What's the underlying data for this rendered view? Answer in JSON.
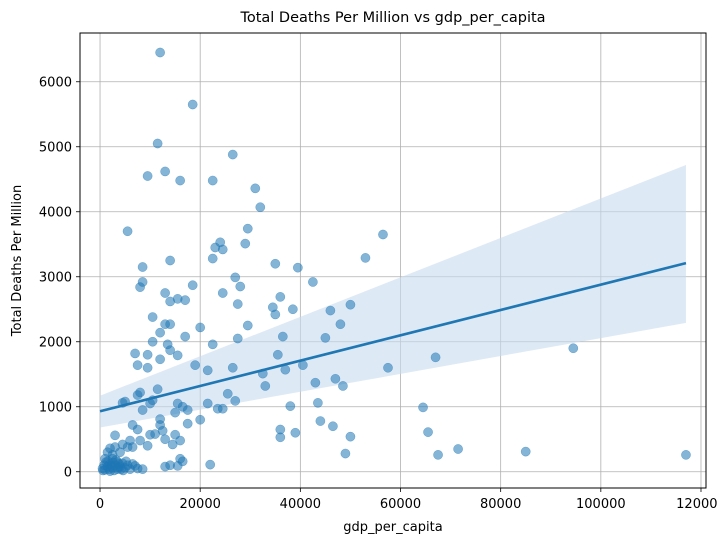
{
  "chart_data": {
    "type": "scatter",
    "title": "Total Deaths Per Million vs gdp_per_capita",
    "xlabel": "gdp_per_capita",
    "ylabel": "Total Deaths Per Million",
    "xlim": [
      -4000,
      121000
    ],
    "ylim": [
      -250,
      6750
    ],
    "xticks": [
      0,
      20000,
      40000,
      60000,
      80000,
      100000,
      120000
    ],
    "yticks": [
      0,
      1000,
      2000,
      3000,
      4000,
      5000,
      6000
    ],
    "grid": true,
    "colors": {
      "points": "#1f77b4",
      "line": "#1f77b4",
      "band": "#c6dbef",
      "grid": "#b0b0b0",
      "axis": "#000000"
    },
    "regression": {
      "x": [
        0,
        117000
      ],
      "y": [
        930,
        3210
      ],
      "ci_upper": [
        1170,
        4720
      ],
      "ci_lower": [
        680,
        2290
      ]
    },
    "points": [
      [
        12000,
        6450
      ],
      [
        18500,
        5650
      ],
      [
        11500,
        5050
      ],
      [
        26500,
        4880
      ],
      [
        9500,
        4550
      ],
      [
        13000,
        4620
      ],
      [
        16000,
        4480
      ],
      [
        22500,
        4480
      ],
      [
        31000,
        4360
      ],
      [
        32000,
        4070
      ],
      [
        5500,
        3700
      ],
      [
        29500,
        3740
      ],
      [
        56500,
        3650
      ],
      [
        23000,
        3450
      ],
      [
        24000,
        3530
      ],
      [
        24500,
        3420
      ],
      [
        14000,
        3250
      ],
      [
        22500,
        3280
      ],
      [
        29000,
        3510
      ],
      [
        35000,
        3200
      ],
      [
        39500,
        3140
      ],
      [
        53000,
        3290
      ],
      [
        8500,
        3150
      ],
      [
        8500,
        2920
      ],
      [
        13000,
        2750
      ],
      [
        15500,
        2660
      ],
      [
        18500,
        2870
      ],
      [
        27000,
        2990
      ],
      [
        8000,
        2840
      ],
      [
        14000,
        2620
      ],
      [
        17000,
        2640
      ],
      [
        24500,
        2750
      ],
      [
        27500,
        2580
      ],
      [
        28000,
        2850
      ],
      [
        34500,
        2530
      ],
      [
        36000,
        2690
      ],
      [
        38500,
        2500
      ],
      [
        42500,
        2920
      ],
      [
        46000,
        2480
      ],
      [
        48000,
        2270
      ],
      [
        50000,
        2570
      ],
      [
        10500,
        2380
      ],
      [
        13000,
        2270
      ],
      [
        14000,
        2270
      ],
      [
        20000,
        2220
      ],
      [
        29500,
        2250
      ],
      [
        35000,
        2420
      ],
      [
        12000,
        2140
      ],
      [
        10500,
        2000
      ],
      [
        13500,
        1960
      ],
      [
        17000,
        2080
      ],
      [
        22500,
        1960
      ],
      [
        27500,
        2050
      ],
      [
        36500,
        2080
      ],
      [
        45000,
        2060
      ],
      [
        7000,
        1820
      ],
      [
        9500,
        1800
      ],
      [
        12000,
        1730
      ],
      [
        14000,
        1870
      ],
      [
        15500,
        1790
      ],
      [
        19000,
        1640
      ],
      [
        21500,
        1560
      ],
      [
        26500,
        1600
      ],
      [
        32500,
        1510
      ],
      [
        35500,
        1800
      ],
      [
        37000,
        1570
      ],
      [
        40500,
        1640
      ],
      [
        7500,
        1640
      ],
      [
        8000,
        1220
      ],
      [
        9500,
        1600
      ],
      [
        11500,
        1270
      ],
      [
        10000,
        1050
      ],
      [
        12000,
        810
      ],
      [
        12500,
        630
      ],
      [
        15000,
        910
      ],
      [
        15500,
        1050
      ],
      [
        16500,
        1000
      ],
      [
        17500,
        950
      ],
      [
        20000,
        800
      ],
      [
        21500,
        1050
      ],
      [
        23500,
        970
      ],
      [
        24500,
        970
      ],
      [
        25500,
        1200
      ],
      [
        27000,
        1090
      ],
      [
        33000,
        1320
      ],
      [
        38000,
        1010
      ],
      [
        43000,
        1370
      ],
      [
        43500,
        1060
      ],
      [
        47000,
        1430
      ],
      [
        48500,
        1320
      ],
      [
        57500,
        1600
      ],
      [
        64500,
        990
      ],
      [
        65500,
        610
      ],
      [
        67000,
        1760
      ],
      [
        67500,
        260
      ],
      [
        71500,
        350
      ],
      [
        85000,
        310
      ],
      [
        94500,
        1900
      ],
      [
        117000,
        260
      ],
      [
        36000,
        530
      ],
      [
        36000,
        650
      ],
      [
        39000,
        600
      ],
      [
        44000,
        780
      ],
      [
        46500,
        700
      ],
      [
        49000,
        280
      ],
      [
        50000,
        540
      ],
      [
        4500,
        1060
      ],
      [
        5000,
        1080
      ],
      [
        7500,
        1180
      ],
      [
        8500,
        950
      ],
      [
        10500,
        1100
      ],
      [
        10000,
        570
      ],
      [
        11000,
        580
      ],
      [
        12000,
        720
      ],
      [
        13000,
        500
      ],
      [
        14500,
        420
      ],
      [
        15000,
        570
      ],
      [
        16000,
        480
      ],
      [
        16000,
        200
      ],
      [
        15500,
        90
      ],
      [
        13000,
        80
      ],
      [
        14000,
        100
      ],
      [
        16500,
        160
      ],
      [
        17500,
        740
      ],
      [
        22000,
        110
      ],
      [
        7500,
        650
      ],
      [
        8000,
        480
      ],
      [
        9500,
        400
      ],
      [
        8500,
        40
      ],
      [
        6500,
        720
      ],
      [
        6000,
        480
      ],
      [
        5500,
        380
      ],
      [
        6500,
        380
      ],
      [
        4500,
        420
      ],
      [
        3000,
        560
      ],
      [
        3000,
        380
      ],
      [
        2000,
        360
      ],
      [
        1500,
        300
      ],
      [
        2500,
        260
      ],
      [
        4000,
        300
      ],
      [
        3500,
        150
      ],
      [
        1000,
        200
      ],
      [
        500,
        50
      ],
      [
        1000,
        30
      ],
      [
        1500,
        80
      ],
      [
        2000,
        120
      ],
      [
        2500,
        60
      ],
      [
        3000,
        100
      ],
      [
        3500,
        40
      ],
      [
        4000,
        80
      ],
      [
        4500,
        130
      ],
      [
        5000,
        60
      ],
      [
        5500,
        100
      ],
      [
        6000,
        40
      ],
      [
        6500,
        120
      ],
      [
        7000,
        90
      ],
      [
        2500,
        200
      ],
      [
        2000,
        10
      ],
      [
        1200,
        150
      ],
      [
        800,
        100
      ],
      [
        3200,
        180
      ],
      [
        4200,
        40
      ],
      [
        5200,
        160
      ],
      [
        1800,
        40
      ],
      [
        2800,
        20
      ],
      [
        3800,
        120
      ],
      [
        600,
        20
      ],
      [
        2200,
        90
      ],
      [
        1600,
        160
      ],
      [
        2600,
        140
      ],
      [
        3600,
        70
      ],
      [
        4600,
        20
      ],
      [
        7500,
        50
      ]
    ]
  }
}
